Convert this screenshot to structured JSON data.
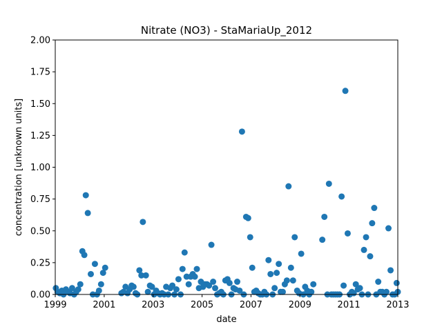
{
  "chart_data": {
    "type": "scatter",
    "title": "Nitrate (NO3) - StaMariaUp_2012",
    "xlabel": "date",
    "ylabel": "concentration [unknown units]",
    "x_is_date": true,
    "xlim": [
      "1999-01-01",
      "2013-01-01"
    ],
    "ylim": [
      0,
      2.0
    ],
    "x_ticks": [
      "1999",
      "2001",
      "2003",
      "2005",
      "2007",
      "2009",
      "2011",
      "2013"
    ],
    "y_ticks": [
      "0.00",
      "0.25",
      "0.50",
      "0.75",
      "1.00",
      "1.25",
      "1.50",
      "1.75",
      "2.00"
    ],
    "grid": false,
    "legend": false,
    "marker_color": "#1f77b4",
    "series": [
      {
        "points": [
          [
            "1999-01-10",
            0.05
          ],
          [
            "1999-02-05",
            0.02
          ],
          [
            "1999-03-10",
            0.01
          ],
          [
            "1999-04-10",
            0.03
          ],
          [
            "1999-05-05",
            0.0
          ],
          [
            "1999-06-10",
            0.04
          ],
          [
            "1999-07-10",
            0.02
          ],
          [
            "1999-08-10",
            0.01
          ],
          [
            "1999-09-10",
            0.05
          ],
          [
            "1999-10-10",
            0.0
          ],
          [
            "1999-11-10",
            0.02
          ],
          [
            "1999-12-10",
            0.04
          ],
          [
            "2000-01-10",
            0.08
          ],
          [
            "2000-02-10",
            0.34
          ],
          [
            "2000-03-10",
            0.31
          ],
          [
            "2000-04-01",
            0.78
          ],
          [
            "2000-05-01",
            0.64
          ],
          [
            "2000-06-15",
            0.16
          ],
          [
            "2000-07-15",
            0.0
          ],
          [
            "2000-08-15",
            0.24
          ],
          [
            "2000-09-15",
            0.0
          ],
          [
            "2000-10-15",
            0.03
          ],
          [
            "2000-11-15",
            0.08
          ],
          [
            "2000-12-15",
            0.17
          ],
          [
            "2001-01-15",
            0.21
          ],
          [
            "2001-09-15",
            0.01
          ],
          [
            "2001-10-15",
            0.02
          ],
          [
            "2001-11-15",
            0.06
          ],
          [
            "2001-12-15",
            0.01
          ],
          [
            "2002-01-15",
            0.04
          ],
          [
            "2002-02-15",
            0.07
          ],
          [
            "2002-03-15",
            0.06
          ],
          [
            "2002-04-15",
            0.01
          ],
          [
            "2002-05-10",
            0.0
          ],
          [
            "2002-06-10",
            0.19
          ],
          [
            "2002-07-10",
            0.15
          ],
          [
            "2002-08-01",
            0.57
          ],
          [
            "2002-09-15",
            0.15
          ],
          [
            "2002-10-15",
            0.02
          ],
          [
            "2002-11-15",
            0.07
          ],
          [
            "2002-12-15",
            0.06
          ],
          [
            "2003-01-15",
            0.0
          ],
          [
            "2003-02-15",
            0.03
          ],
          [
            "2003-03-15",
            0.01
          ],
          [
            "2003-04-15",
            0.0
          ],
          [
            "2003-05-15",
            0.01
          ],
          [
            "2003-06-15",
            0.0
          ],
          [
            "2003-07-15",
            0.06
          ],
          [
            "2003-08-15",
            0.0
          ],
          [
            "2003-09-15",
            0.05
          ],
          [
            "2003-10-15",
            0.07
          ],
          [
            "2003-11-15",
            0.0
          ],
          [
            "2003-12-15",
            0.04
          ],
          [
            "2004-01-15",
            0.12
          ],
          [
            "2004-02-15",
            0.0
          ],
          [
            "2004-03-15",
            0.2
          ],
          [
            "2004-04-15",
            0.33
          ],
          [
            "2004-05-15",
            0.14
          ],
          [
            "2004-06-15",
            0.08
          ],
          [
            "2004-07-15",
            0.14
          ],
          [
            "2004-08-15",
            0.16
          ],
          [
            "2004-09-15",
            0.14
          ],
          [
            "2004-10-15",
            0.2
          ],
          [
            "2004-11-15",
            0.05
          ],
          [
            "2004-12-15",
            0.1
          ],
          [
            "2005-01-15",
            0.06
          ],
          [
            "2005-02-15",
            0.08
          ],
          [
            "2005-03-15",
            0.08
          ],
          [
            "2005-04-15",
            0.07
          ],
          [
            "2005-05-20",
            0.39
          ],
          [
            "2005-06-15",
            0.1
          ],
          [
            "2005-07-15",
            0.05
          ],
          [
            "2005-08-15",
            0.0
          ],
          [
            "2005-09-15",
            0.01
          ],
          [
            "2005-10-15",
            0.02
          ],
          [
            "2005-11-15",
            0.0
          ],
          [
            "2005-12-15",
            0.11
          ],
          [
            "2006-01-15",
            0.12
          ],
          [
            "2006-02-15",
            0.09
          ],
          [
            "2006-03-15",
            0.0
          ],
          [
            "2006-04-15",
            0.05
          ],
          [
            "2006-05-15",
            0.04
          ],
          [
            "2006-06-10",
            0.1
          ],
          [
            "2006-07-15",
            0.03
          ],
          [
            "2006-08-20",
            1.28
          ],
          [
            "2006-09-15",
            0.0
          ],
          [
            "2006-10-20",
            0.61
          ],
          [
            "2006-11-20",
            0.6
          ],
          [
            "2006-12-20",
            0.45
          ],
          [
            "2007-01-20",
            0.21
          ],
          [
            "2007-02-20",
            0.02
          ],
          [
            "2007-03-20",
            0.03
          ],
          [
            "2007-04-20",
            0.01
          ],
          [
            "2007-05-20",
            0.0
          ],
          [
            "2007-06-20",
            0.0
          ],
          [
            "2007-07-20",
            0.02
          ],
          [
            "2007-08-20",
            0.0
          ],
          [
            "2007-09-20",
            0.27
          ],
          [
            "2007-10-20",
            0.16
          ],
          [
            "2007-11-20",
            0.0
          ],
          [
            "2007-12-20",
            0.05
          ],
          [
            "2008-01-20",
            0.17
          ],
          [
            "2008-02-20",
            0.24
          ],
          [
            "2008-03-20",
            0.02
          ],
          [
            "2008-04-20",
            0.02
          ],
          [
            "2008-05-20",
            0.08
          ],
          [
            "2008-06-20",
            0.11
          ],
          [
            "2008-07-15",
            0.85
          ],
          [
            "2008-08-20",
            0.21
          ],
          [
            "2008-09-20",
            0.11
          ],
          [
            "2008-10-15",
            0.45
          ],
          [
            "2008-11-20",
            0.03
          ],
          [
            "2008-12-20",
            0.01
          ],
          [
            "2009-01-20",
            0.32
          ],
          [
            "2009-02-20",
            0.0
          ],
          [
            "2009-03-20",
            0.06
          ],
          [
            "2009-04-20",
            0.03
          ],
          [
            "2009-05-20",
            0.0
          ],
          [
            "2009-06-20",
            0.02
          ],
          [
            "2009-07-20",
            0.08
          ],
          [
            "2009-12-01",
            0.43
          ],
          [
            "2010-01-01",
            0.61
          ],
          [
            "2010-02-15",
            0.0
          ],
          [
            "2010-03-10",
            0.87
          ],
          [
            "2010-04-15",
            0.0
          ],
          [
            "2010-05-15",
            0.0
          ],
          [
            "2010-06-15",
            0.0
          ],
          [
            "2010-07-15",
            0.0
          ],
          [
            "2010-08-15",
            0.0
          ],
          [
            "2010-09-15",
            0.77
          ],
          [
            "2010-10-15",
            0.07
          ],
          [
            "2010-11-10",
            1.6
          ],
          [
            "2010-12-15",
            0.48
          ],
          [
            "2011-01-15",
            0.0
          ],
          [
            "2011-02-15",
            0.02
          ],
          [
            "2011-03-15",
            0.01
          ],
          [
            "2011-04-15",
            0.08
          ],
          [
            "2011-05-15",
            0.04
          ],
          [
            "2011-06-15",
            0.05
          ],
          [
            "2011-07-15",
            0.0
          ],
          [
            "2011-08-15",
            0.35
          ],
          [
            "2011-09-15",
            0.45
          ],
          [
            "2011-10-15",
            0.0
          ],
          [
            "2011-11-15",
            0.3
          ],
          [
            "2011-12-15",
            0.56
          ],
          [
            "2012-01-15",
            0.68
          ],
          [
            "2012-02-15",
            0.0
          ],
          [
            "2012-03-15",
            0.1
          ],
          [
            "2012-04-15",
            0.02
          ],
          [
            "2012-05-15",
            0.02
          ],
          [
            "2012-06-15",
            0.0
          ],
          [
            "2012-07-15",
            0.02
          ],
          [
            "2012-08-15",
            0.52
          ],
          [
            "2012-09-15",
            0.19
          ],
          [
            "2012-10-15",
            0.0
          ],
          [
            "2012-11-15",
            0.0
          ],
          [
            "2012-12-15",
            0.09
          ],
          [
            "2013-01-01",
            0.02
          ]
        ]
      }
    ]
  }
}
